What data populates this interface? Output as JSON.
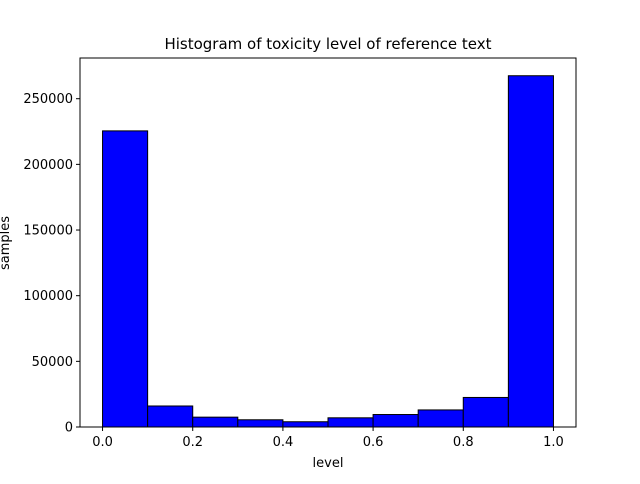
{
  "chart_data": {
    "type": "bar",
    "title": "Histogram of toxicity level of reference text",
    "xlabel": "level",
    "ylabel": "samples",
    "bins": [
      {
        "start": 0.0,
        "end": 0.1,
        "value": 225500
      },
      {
        "start": 0.1,
        "end": 0.2,
        "value": 16000
      },
      {
        "start": 0.2,
        "end": 0.3,
        "value": 7500
      },
      {
        "start": 0.3,
        "end": 0.4,
        "value": 5500
      },
      {
        "start": 0.4,
        "end": 0.5,
        "value": 4000
      },
      {
        "start": 0.5,
        "end": 0.6,
        "value": 7000
      },
      {
        "start": 0.6,
        "end": 0.7,
        "value": 9500
      },
      {
        "start": 0.7,
        "end": 0.8,
        "value": 13000
      },
      {
        "start": 0.8,
        "end": 0.9,
        "value": 22500
      },
      {
        "start": 0.9,
        "end": 1.0,
        "value": 267500
      }
    ],
    "xlim": [
      -0.05,
      1.05
    ],
    "ylim": [
      0,
      281000
    ],
    "xticks": [
      {
        "value": 0.0,
        "label": "0.0"
      },
      {
        "value": 0.2,
        "label": "0.2"
      },
      {
        "value": 0.4,
        "label": "0.4"
      },
      {
        "value": 0.6,
        "label": "0.6"
      },
      {
        "value": 0.8,
        "label": "0.8"
      },
      {
        "value": 1.0,
        "label": "1.0"
      }
    ],
    "yticks": [
      {
        "value": 0,
        "label": "0"
      },
      {
        "value": 50000,
        "label": "50000"
      },
      {
        "value": 100000,
        "label": "100000"
      },
      {
        "value": 150000,
        "label": "150000"
      },
      {
        "value": 200000,
        "label": "200000"
      },
      {
        "value": 250000,
        "label": "250000"
      }
    ],
    "grid": false,
    "bar_color": "#0000ff",
    "edge_color": "#000000"
  }
}
